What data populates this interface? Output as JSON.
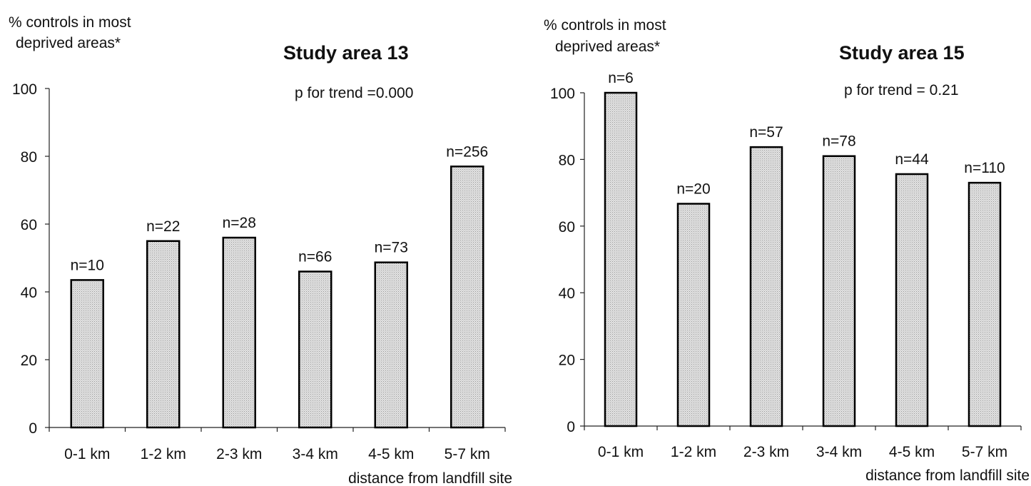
{
  "chart_data": [
    {
      "type": "bar",
      "title": "Study area 13",
      "ylabel": "% controls in most deprived areas*",
      "ylabel_lines": [
        "% controls in most",
        "deprived areas*"
      ],
      "xlabel": "distance from landfill site",
      "annotation": "p for trend =0.000",
      "categories": [
        "0-1 km",
        "1-2 km",
        "2-3 km",
        "3-4 km",
        "4-5 km",
        "5-7 km"
      ],
      "values": [
        43.5,
        55,
        56,
        46,
        48.7,
        77
      ],
      "bar_labels": [
        "n=10",
        "n=22",
        "n=28",
        "n=66",
        "n=73",
        "n=256"
      ],
      "ylim": [
        0,
        100
      ],
      "yticks": [
        "0",
        "20",
        "40",
        "60",
        "80",
        "100"
      ],
      "grid": false,
      "bar_fill": "#e4e4e4"
    },
    {
      "type": "bar",
      "title": "Study area 15",
      "ylabel": "% controls in most deprived areas*",
      "ylabel_lines": [
        "% controls in most",
        "deprived areas*"
      ],
      "xlabel": "distance from landfill site",
      "annotation": "p for trend = 0.21",
      "categories": [
        "0-1 km",
        "1-2 km",
        "2-3 km",
        "3-4 km",
        "4-5 km",
        "5-7 km"
      ],
      "values": [
        100,
        66.7,
        83.7,
        81,
        75.6,
        73
      ],
      "bar_labels": [
        "n=6",
        "n=20",
        "n=57",
        "n=78",
        "n=44",
        "n=110"
      ],
      "ylim": [
        0,
        100
      ],
      "yticks": [
        "0",
        "20",
        "40",
        "60",
        "80",
        "100"
      ],
      "grid": false,
      "bar_fill": "#e4e4e4"
    }
  ]
}
